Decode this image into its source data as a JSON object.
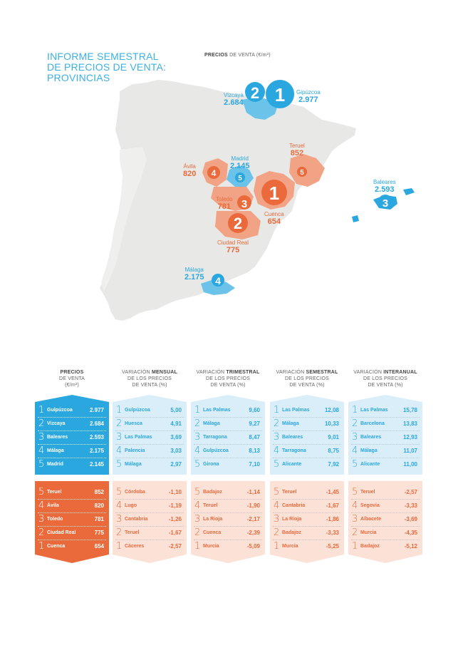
{
  "title": [
    "INFORME SEMESTRAL",
    "DE PRECIOS DE VENTA:",
    "PROVINCIAS"
  ],
  "map_title": {
    "bold": "PRECIOS",
    "rest": " DE VENTA (€/m²)"
  },
  "colors": {
    "blue": "#2aa7df",
    "blue_light": "#d9eef9",
    "orange": "#ea6a3c",
    "orange_light": "#fbe1d6",
    "land": "#e8e8e6"
  },
  "map_labels": [
    {
      "name": "Vizcaya",
      "value": "2.684",
      "rank": "2",
      "color": "blue"
    },
    {
      "name": "Gipúzcoa",
      "value": "2.977",
      "rank": "1",
      "color": "blue"
    },
    {
      "name": "Madrid",
      "value": "2.145",
      "rank": "5",
      "color": "blue"
    },
    {
      "name": "Baleares",
      "value": "2.593",
      "rank": "3",
      "color": "blue"
    },
    {
      "name": "Málaga",
      "value": "2.175",
      "rank": "4",
      "color": "blue"
    },
    {
      "name": "Teruel",
      "value": "852",
      "rank": "5",
      "color": "orange"
    },
    {
      "name": "Ávila",
      "value": "820",
      "rank": "4",
      "color": "orange"
    },
    {
      "name": "Toledo",
      "value": "781",
      "rank": "3",
      "color": "orange"
    },
    {
      "name": "Cuenca",
      "value": "654",
      "rank": "1",
      "color": "orange"
    },
    {
      "name": "Ciudad Real",
      "value": "775",
      "rank": "2",
      "color": "orange"
    }
  ],
  "columns": [
    {
      "head": {
        "pre": "",
        "bold": "PRECIOS",
        "post": "DE VENTA",
        "line3": "(€/m²)"
      },
      "top": [
        {
          "rank": "1",
          "name": "Gulpúzcoa",
          "value": "2.977"
        },
        {
          "rank": "2",
          "name": "Vizcaya",
          "value": "2.684"
        },
        {
          "rank": "3",
          "name": "Baleares",
          "value": "2.593"
        },
        {
          "rank": "4",
          "name": "Málaga",
          "value": "2.175"
        },
        {
          "rank": "5",
          "name": "Madrid",
          "value": "2.145"
        }
      ],
      "bottom": [
        {
          "rank": "5",
          "name": "Teruel",
          "value": "852"
        },
        {
          "rank": "4",
          "name": "Ávila",
          "value": "820"
        },
        {
          "rank": "3",
          "name": "Toledo",
          "value": "781"
        },
        {
          "rank": "2",
          "name": "Ciudad Real",
          "value": "775"
        },
        {
          "rank": "1",
          "name": "Cuenca",
          "value": "654"
        }
      ]
    },
    {
      "head": {
        "pre": "VARIACIÓN ",
        "bold": "MENSUAL",
        "post": "DE LOS PRECIOS",
        "line3": "DE VENTA (%)"
      },
      "top": [
        {
          "rank": "1",
          "name": "Gulpúzcoa",
          "value": "5,00"
        },
        {
          "rank": "2",
          "name": "Huesca",
          "value": "4,91"
        },
        {
          "rank": "3",
          "name": "Las Palmas",
          "value": "3,69"
        },
        {
          "rank": "4",
          "name": "Palencia",
          "value": "3,03"
        },
        {
          "rank": "5",
          "name": "Málaga",
          "value": "2,97"
        }
      ],
      "bottom": [
        {
          "rank": "5",
          "name": "Córdoba",
          "value": "-1,10"
        },
        {
          "rank": "4",
          "name": "Lugo",
          "value": "-1,19"
        },
        {
          "rank": "3",
          "name": "Cantabria",
          "value": "-1,26"
        },
        {
          "rank": "2",
          "name": "Teruel",
          "value": "-1,67"
        },
        {
          "rank": "1",
          "name": "Cáceres",
          "value": "-2,57"
        }
      ]
    },
    {
      "head": {
        "pre": "VARIACIÓN ",
        "bold": "TRIMESTRAL",
        "post": "DE LOS PRECIOS",
        "line3": "DE VENTA (%)"
      },
      "top": [
        {
          "rank": "1",
          "name": "Las Palmas",
          "value": "9,60"
        },
        {
          "rank": "2",
          "name": "Málaga",
          "value": "9,27"
        },
        {
          "rank": "3",
          "name": "Tarragona",
          "value": "8,47"
        },
        {
          "rank": "4",
          "name": "Gulpúzcoa",
          "value": "8,13"
        },
        {
          "rank": "5",
          "name": "Girona",
          "value": "7,10"
        }
      ],
      "bottom": [
        {
          "rank": "5",
          "name": "Badajoz",
          "value": "-1,14"
        },
        {
          "rank": "4",
          "name": "Teruel",
          "value": "-1,90"
        },
        {
          "rank": "3",
          "name": "La Rioja",
          "value": "-2,17"
        },
        {
          "rank": "2",
          "name": "Cuenca",
          "value": "-2,39"
        },
        {
          "rank": "1",
          "name": "Murcia",
          "value": "-5,09"
        }
      ]
    },
    {
      "head": {
        "pre": "VARIACIÓN ",
        "bold": "SEMESTRAL",
        "post": "DE LOS PRECIOS",
        "line3": "DE VENTA (%)"
      },
      "top": [
        {
          "rank": "1",
          "name": "Las Palmas",
          "value": "12,08"
        },
        {
          "rank": "2",
          "name": "Málaga",
          "value": "10,33"
        },
        {
          "rank": "3",
          "name": "Baleares",
          "value": "9,01"
        },
        {
          "rank": "4",
          "name": "Tarragona",
          "value": "8,75"
        },
        {
          "rank": "5",
          "name": "Alicante",
          "value": "7,92"
        }
      ],
      "bottom": [
        {
          "rank": "5",
          "name": "Teruel",
          "value": "-1,45"
        },
        {
          "rank": "4",
          "name": "Cantabria",
          "value": "-1,67"
        },
        {
          "rank": "3",
          "name": "La Rioja",
          "value": "-1,86"
        },
        {
          "rank": "2",
          "name": "Badajoz",
          "value": "-3,33"
        },
        {
          "rank": "1",
          "name": "Murcia",
          "value": "-5,25"
        }
      ]
    },
    {
      "head": {
        "pre": "VARIACIÓN ",
        "bold": "INTERANUAL",
        "post": "DE LOS PRECIOS",
        "line3": "DE VENTA (%)"
      },
      "top": [
        {
          "rank": "1",
          "name": "Las Palmas",
          "value": "15,78"
        },
        {
          "rank": "2",
          "name": "Barcelona",
          "value": "13,83"
        },
        {
          "rank": "3",
          "name": "Baleares",
          "value": "12,93"
        },
        {
          "rank": "4",
          "name": "Málaga",
          "value": "11,07"
        },
        {
          "rank": "5",
          "name": "Alicante",
          "value": "11,00"
        }
      ],
      "bottom": [
        {
          "rank": "5",
          "name": "Teruel",
          "value": "-2,57"
        },
        {
          "rank": "4",
          "name": "Segovia",
          "value": "-3,33"
        },
        {
          "rank": "3",
          "name": "Albacete",
          "value": "-3,69"
        },
        {
          "rank": "2",
          "name": "Murcia",
          "value": "-4,35"
        },
        {
          "rank": "1",
          "name": "Badajoz",
          "value": "-5,12"
        }
      ]
    }
  ]
}
